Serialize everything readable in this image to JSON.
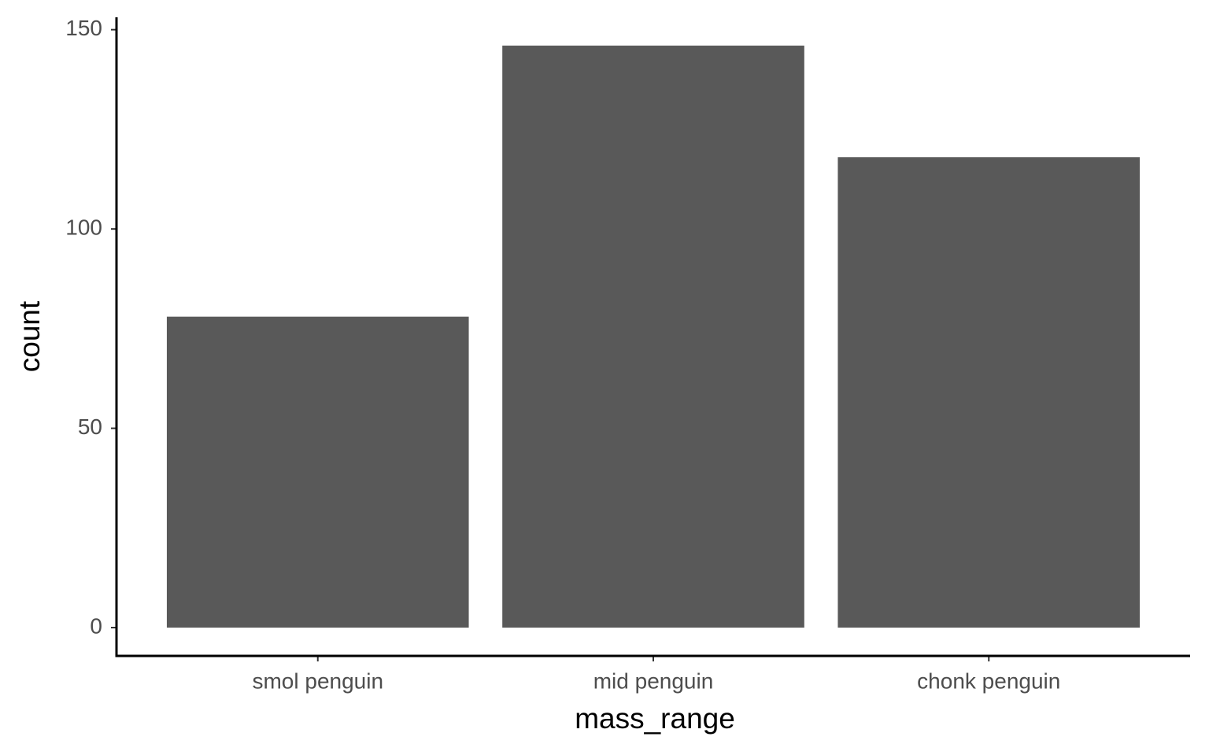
{
  "chart_data": {
    "type": "bar",
    "x_label": "mass_range",
    "y_label": "count",
    "categories": [
      "smol penguin",
      "mid penguin",
      "chonk penguin"
    ],
    "values": [
      78,
      146,
      118
    ],
    "color": "#595959",
    "ylim": [
      -7.1,
      153.1
    ],
    "yticks": [
      0,
      50,
      100,
      150
    ],
    "grid": false
  }
}
